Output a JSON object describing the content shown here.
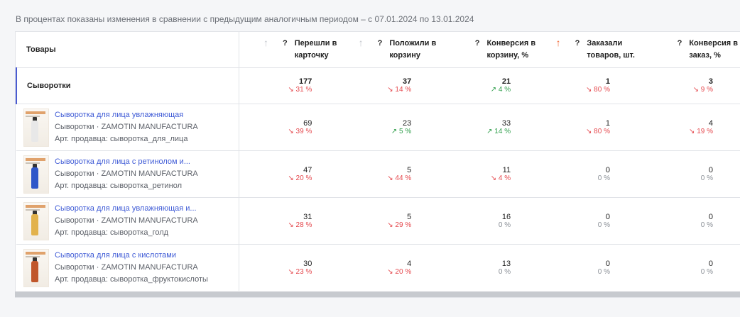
{
  "note": "В процентах показаны изменения в сравнении с предыдущим аналогичным периодом – с 07.01.2024 по 13.01.2024",
  "colors": {
    "down": "#e5484d",
    "up": "#2e9e4a",
    "link": "#3f5bd6",
    "sort_active": "#f26b3a"
  },
  "columns": {
    "product": "Товары",
    "metrics": [
      {
        "lines": [
          "Перешли в",
          "карточку"
        ],
        "sort": "up",
        "active": false
      },
      {
        "lines": [
          "Положили в",
          "корзину"
        ],
        "sort": "up",
        "active": false
      },
      {
        "lines": [
          "Конверсия в",
          "корзину, %"
        ],
        "sort": "",
        "active": false
      },
      {
        "lines": [
          "Заказали",
          "товаров, шт."
        ],
        "sort": "up",
        "active": true
      },
      {
        "lines": [
          "Конверсия в",
          "заказ, %"
        ],
        "sort": "",
        "active": false
      }
    ],
    "help_mark": "?",
    "sort_glyph": "↑"
  },
  "group": {
    "name": "Сыворотки",
    "metrics": [
      {
        "value": "177",
        "change": "↘ 31 %",
        "dir": "down"
      },
      {
        "value": "37",
        "change": "↘ 14 %",
        "dir": "down"
      },
      {
        "value": "21",
        "change": "↗ 4 %",
        "dir": "up"
      },
      {
        "value": "1",
        "change": "↘ 80 %",
        "dir": "down"
      },
      {
        "value": "3",
        "change": "↘ 9 %",
        "dir": "down"
      }
    ]
  },
  "items": [
    {
      "title": "Сыворотка для лица увлажняющая",
      "brand": "Сыворотки · ZAMOTIN MANUFACTURA",
      "sku": "Арт. продавца: сыворотка_для_лица",
      "bottle_color": "#e8e8e8",
      "metrics": [
        {
          "value": "69",
          "change": "↘ 39 %",
          "dir": "down"
        },
        {
          "value": "23",
          "change": "↗ 5 %",
          "dir": "up"
        },
        {
          "value": "33",
          "change": "↗ 14 %",
          "dir": "up"
        },
        {
          "value": "1",
          "change": "↘ 80 %",
          "dir": "down"
        },
        {
          "value": "4",
          "change": "↘ 19 %",
          "dir": "down"
        }
      ]
    },
    {
      "title": "Сыворотка для лица с ретинолом и...",
      "brand": "Сыворотки · ZAMOTIN MANUFACTURA",
      "sku": "Арт. продавца: сыворотка_ретинол",
      "bottle_color": "#2f57c9",
      "metrics": [
        {
          "value": "47",
          "change": "↘ 20 %",
          "dir": "down"
        },
        {
          "value": "5",
          "change": "↘ 44 %",
          "dir": "down"
        },
        {
          "value": "11",
          "change": "↘ 4 %",
          "dir": "down"
        },
        {
          "value": "0",
          "change": "0 %",
          "dir": "zero"
        },
        {
          "value": "0",
          "change": "0 %",
          "dir": "zero"
        }
      ]
    },
    {
      "title": "Сыворотка для лица увлажняющая и...",
      "brand": "Сыворотки · ZAMOTIN MANUFACTURA",
      "sku": "Арт. продавца: сыворотка_голд",
      "bottle_color": "#e2b24c",
      "metrics": [
        {
          "value": "31",
          "change": "↘ 28 %",
          "dir": "down"
        },
        {
          "value": "5",
          "change": "↘ 29 %",
          "dir": "down"
        },
        {
          "value": "16",
          "change": "0 %",
          "dir": "zero"
        },
        {
          "value": "0",
          "change": "0 %",
          "dir": "zero"
        },
        {
          "value": "0",
          "change": "0 %",
          "dir": "zero"
        }
      ]
    },
    {
      "title": "Сыворотка для лица с кислотами",
      "brand": "Сыворотки · ZAMOTIN MANUFACTURA",
      "sku": "Арт. продавца: сыворотка_фруктокислоты",
      "bottle_color": "#c0562a",
      "metrics": [
        {
          "value": "30",
          "change": "↘ 23 %",
          "dir": "down"
        },
        {
          "value": "4",
          "change": "↘ 20 %",
          "dir": "down"
        },
        {
          "value": "13",
          "change": "0 %",
          "dir": "zero"
        },
        {
          "value": "0",
          "change": "0 %",
          "dir": "zero"
        },
        {
          "value": "0",
          "change": "0 %",
          "dir": "zero"
        }
      ]
    }
  ]
}
